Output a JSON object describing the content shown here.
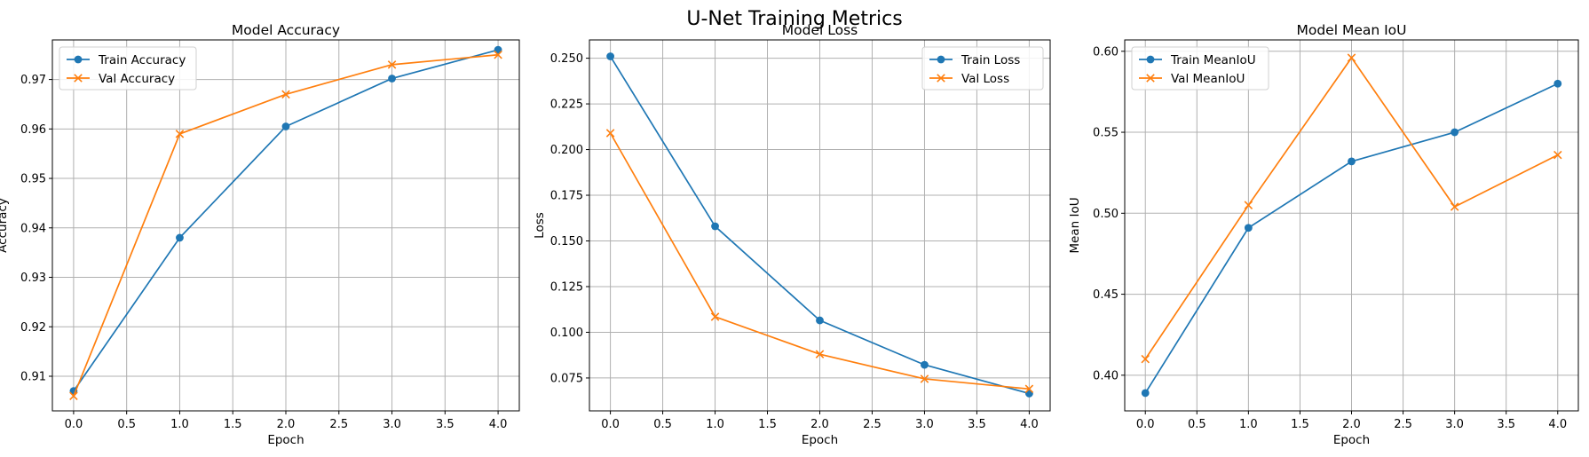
{
  "figure": {
    "suptitle": "U-Net Training Metrics"
  },
  "colors": {
    "train": "#1f77b4",
    "val": "#ff7f0e"
  },
  "chart_data": [
    {
      "type": "line",
      "title": "Model Accuracy",
      "xlabel": "Epoch",
      "ylabel": "Accuracy",
      "x": [
        0,
        1,
        2,
        3,
        4
      ],
      "xlim": [
        -0.2,
        4.2
      ],
      "ylim": [
        0.903,
        0.978
      ],
      "xticks": [
        "0.0",
        "0.5",
        "1.0",
        "1.5",
        "2.0",
        "2.5",
        "3.0",
        "3.5",
        "4.0"
      ],
      "yticks": [
        "0.91",
        "0.92",
        "0.93",
        "0.94",
        "0.95",
        "0.96",
        "0.97"
      ],
      "grid": true,
      "legend": "upper left",
      "series": [
        {
          "name": "Train Accuracy",
          "marker": "circle",
          "color": "#1f77b4",
          "values": [
            0.907,
            0.938,
            0.9605,
            0.9702,
            0.976
          ]
        },
        {
          "name": "Val Accuracy",
          "marker": "x",
          "color": "#ff7f0e",
          "values": [
            0.906,
            0.959,
            0.967,
            0.973,
            0.975
          ]
        }
      ]
    },
    {
      "type": "line",
      "title": "Model Loss",
      "xlabel": "Epoch",
      "ylabel": "Loss",
      "x": [
        0,
        1,
        2,
        3,
        4
      ],
      "xlim": [
        -0.2,
        4.2
      ],
      "ylim": [
        0.057,
        0.26
      ],
      "xticks": [
        "0.0",
        "0.5",
        "1.0",
        "1.5",
        "2.0",
        "2.5",
        "3.0",
        "3.5",
        "4.0"
      ],
      "yticks": [
        "0.075",
        "0.100",
        "0.125",
        "0.150",
        "0.175",
        "0.200",
        "0.225",
        "0.250"
      ],
      "grid": true,
      "legend": "upper right",
      "series": [
        {
          "name": "Train Loss",
          "marker": "circle",
          "color": "#1f77b4",
          "values": [
            0.251,
            0.158,
            0.1065,
            0.0822,
            0.0665
          ]
        },
        {
          "name": "Val Loss",
          "marker": "x",
          "color": "#ff7f0e",
          "values": [
            0.209,
            0.1085,
            0.088,
            0.0745,
            0.069
          ]
        }
      ]
    },
    {
      "type": "line",
      "title": "Model Mean IoU",
      "xlabel": "Epoch",
      "ylabel": "Mean IoU",
      "x": [
        0,
        1,
        2,
        3,
        4
      ],
      "xlim": [
        -0.2,
        4.2
      ],
      "ylim": [
        0.378,
        0.607
      ],
      "xticks": [
        "0.0",
        "0.5",
        "1.0",
        "1.5",
        "2.0",
        "2.5",
        "3.0",
        "3.5",
        "4.0"
      ],
      "yticks": [
        "0.40",
        "0.45",
        "0.50",
        "0.55",
        "0.60"
      ],
      "grid": true,
      "legend": "upper left",
      "series": [
        {
          "name": "Train MeanIoU",
          "marker": "circle",
          "color": "#1f77b4",
          "values": [
            0.389,
            0.491,
            0.532,
            0.55,
            0.58
          ]
        },
        {
          "name": "Val MeanIoU",
          "marker": "x",
          "color": "#ff7f0e",
          "values": [
            0.41,
            0.505,
            0.596,
            0.504,
            0.536
          ]
        }
      ]
    }
  ]
}
